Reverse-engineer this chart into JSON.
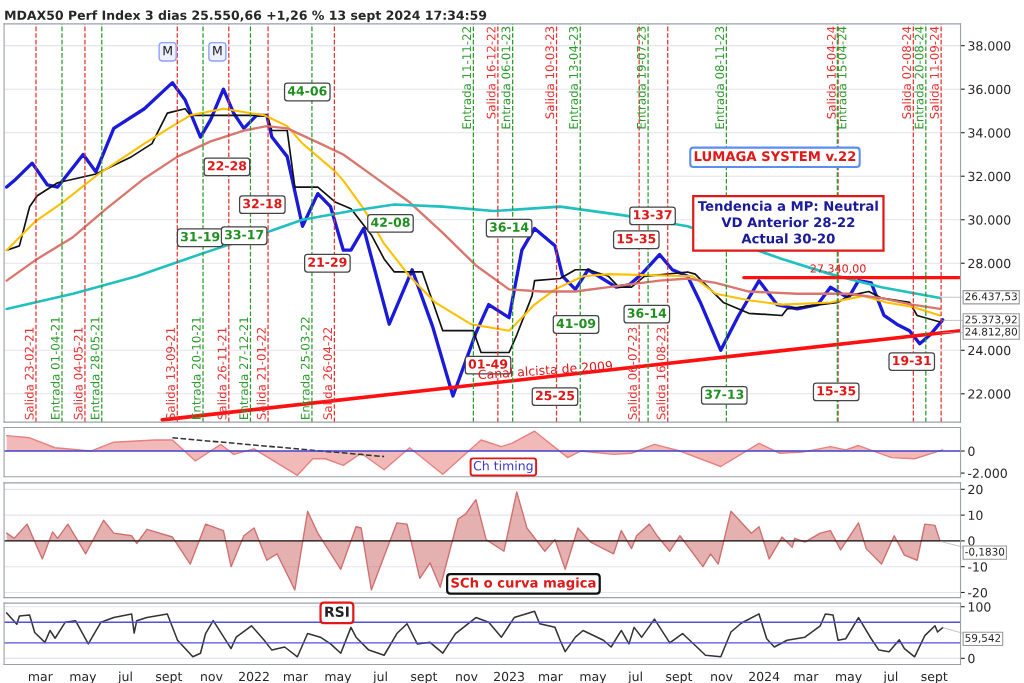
{
  "chart_data": [
    {
      "type": "line",
      "title": "MDAX50 Perf Index 3 dias 25.550,66 +1,26 % 13 sept 2024 17:34:59",
      "grid": "y",
      "tick_labels": "y",
      "xlim": [
        2021.02,
        2024.77
      ],
      "ylim": [
        20700,
        39000
      ],
      "yticks": [
        {
          "value": 22000,
          "label": "22.000"
        },
        {
          "value": 24000,
          "label": "24.000"
        },
        {
          "value": 28000,
          "label": "28.000"
        },
        {
          "value": 30000,
          "label": "30.000"
        },
        {
          "value": 32000,
          "label": "32.000"
        },
        {
          "value": 34000,
          "label": "34.000"
        },
        {
          "value": 36000,
          "label": "36.000"
        },
        {
          "value": 38000,
          "label": "38.000"
        }
      ],
      "series": [
        {
          "color": "#1a1adb",
          "x": [
            2021.03,
            2021.06,
            2021.13,
            2021.19,
            2021.23,
            2021.33,
            2021.38,
            2021.45,
            2021.57,
            2021.68,
            2021.73,
            2021.79,
            2021.83,
            2021.88,
            2021.92,
            2021.96,
            2022.01,
            2022.05,
            2022.07,
            2022.13,
            2022.19,
            2022.25,
            2022.3,
            2022.35,
            2022.38,
            2022.43,
            2022.53,
            2022.62,
            2022.7,
            2022.78,
            2022.87,
            2022.92,
            2023.0,
            2023.05,
            2023.1,
            2023.18,
            2023.21,
            2023.26,
            2023.31,
            2023.42,
            2023.47,
            2023.52,
            2023.59,
            2023.64,
            2023.7,
            2023.75,
            2023.83,
            2023.9,
            2023.98,
            2024.05,
            2024.13,
            2024.21,
            2024.26,
            2024.33,
            2024.37,
            2024.42,
            2024.47,
            2024.52,
            2024.57,
            2024.61,
            2024.65,
            2024.7
          ],
          "values": [
            31500,
            31800,
            32600,
            31600,
            31500,
            33000,
            32200,
            34200,
            35100,
            36300,
            35500,
            33800,
            34600,
            36000,
            34900,
            34200,
            34800,
            34800,
            33800,
            32900,
            29700,
            31200,
            30600,
            28600,
            28600,
            29600,
            25200,
            27700,
            25100,
            21900,
            24800,
            26100,
            25500,
            28600,
            29600,
            28800,
            27400,
            26800,
            27700,
            26900,
            27000,
            27500,
            28400,
            27700,
            27400,
            26200,
            24000,
            25600,
            27200,
            26100,
            25900,
            26100,
            26900,
            26400,
            27200,
            27100,
            25600,
            25200,
            24900,
            24300,
            24700,
            25400
          ]
        },
        {
          "color": "#111111",
          "x": [
            2021.03,
            2021.08,
            2021.12,
            2021.15,
            2021.23,
            2021.38,
            2021.52,
            2021.6,
            2021.66,
            2021.73,
            2021.75,
            2022.05,
            2022.07,
            2022.13,
            2022.16,
            2022.25,
            2022.32,
            2022.38,
            2022.46,
            2022.51,
            2022.55,
            2022.66,
            2022.74,
            2022.86,
            2022.89,
            2023.0,
            2023.03,
            2023.09,
            2023.1,
            2023.2,
            2023.26,
            2023.31,
            2023.39,
            2023.43,
            2023.48,
            2023.53,
            2023.7,
            2023.73,
            2023.78,
            2023.84,
            2023.94,
            2024.07,
            2024.09,
            2024.29,
            2024.33,
            2024.41,
            2024.46,
            2024.57,
            2024.6,
            2024.69
          ],
          "values": [
            28600,
            28800,
            30600,
            31100,
            31700,
            32100,
            32900,
            33500,
            34900,
            35100,
            34800,
            34800,
            34100,
            34100,
            31500,
            31500,
            30800,
            30500,
            29300,
            28200,
            27600,
            27600,
            24900,
            24900,
            23900,
            23900,
            24700,
            26500,
            27200,
            27300,
            27700,
            27700,
            27400,
            26900,
            26900,
            27400,
            27600,
            27500,
            26900,
            26200,
            25700,
            25600,
            25900,
            26200,
            26500,
            26700,
            26400,
            26200,
            25600,
            25300
          ]
        },
        {
          "color": "#ffc000",
          "x": [
            2021.03,
            2021.14,
            2021.25,
            2021.39,
            2021.57,
            2021.68,
            2021.75,
            2021.88,
            2022.04,
            2022.13,
            2022.19,
            2022.32,
            2022.35,
            2022.43,
            2022.51,
            2022.61,
            2022.71,
            2022.85,
            2023.0,
            2023.05,
            2023.1,
            2023.18,
            2023.29,
            2023.39,
            2023.72,
            2023.81,
            2023.94,
            2024.07,
            2024.26,
            2024.39,
            2024.48,
            2024.58,
            2024.69
          ],
          "values": [
            28600,
            29900,
            30800,
            32100,
            33500,
            34300,
            34800,
            35100,
            34800,
            34300,
            33500,
            32200,
            31800,
            30500,
            28900,
            27400,
            26200,
            25200,
            24900,
            25500,
            26100,
            26800,
            27400,
            27500,
            27400,
            26600,
            26300,
            26100,
            26200,
            26500,
            26200,
            26000,
            25600
          ]
        },
        {
          "color": "#d9776f",
          "x": [
            2021.03,
            2021.15,
            2021.29,
            2021.42,
            2021.57,
            2021.7,
            2021.83,
            2021.96,
            2022.05,
            2022.13,
            2022.26,
            2022.35,
            2022.48,
            2022.61,
            2022.74,
            2022.87,
            2023.0,
            2023.13,
            2023.26,
            2023.39,
            2023.59,
            2023.7,
            2023.81,
            2023.94,
            2024.13,
            2024.33,
            2024.46,
            2024.58,
            2024.69
          ],
          "values": [
            27200,
            28200,
            29200,
            30500,
            31900,
            32900,
            33600,
            34100,
            34300,
            34200,
            33500,
            33000,
            31900,
            30800,
            29400,
            27900,
            26800,
            26700,
            26700,
            26900,
            27200,
            27300,
            27100,
            26700,
            26600,
            26600,
            26400,
            26100,
            25900
          ]
        },
        {
          "color": "#20c0c0",
          "x": [
            2021.03,
            2021.29,
            2021.54,
            2021.81,
            2022.07,
            2022.19,
            2022.38,
            2022.55,
            2022.74,
            2022.94,
            2023.2,
            2023.45,
            2023.7,
            2024.07,
            2024.26,
            2024.46,
            2024.69
          ],
          "values": [
            25900,
            26600,
            27400,
            28500,
            29500,
            30000,
            30400,
            30700,
            30600,
            30400,
            30600,
            30200,
            29700,
            28200,
            27500,
            26900,
            26400
          ]
        },
        {
          "color": "#ff1010",
          "x": [
            2021.64,
            2024.77
          ],
          "values": [
            20800,
            24900
          ]
        },
        {
          "color": "#ff1010",
          "x": [
            2023.92,
            2024.77
          ],
          "values": [
            27340,
            27340
          ]
        }
      ],
      "ref_lines": [
        {
          "axis": "x",
          "value": 2021.145,
          "label": "Salida 23-02-21",
          "color": "#e83030",
          "line_style": "dashed"
        },
        {
          "axis": "x",
          "value": 2021.247,
          "label": "Entrada 01-04-21",
          "color": "#2a9a2a",
          "line_style": "dashed"
        },
        {
          "axis": "x",
          "value": 2021.337,
          "label": "Salida 04-05-21",
          "color": "#e83030",
          "line_style": "dashed"
        },
        {
          "axis": "x",
          "value": 2021.403,
          "label": "Entrada 28-05-21",
          "color": "#2a9a2a",
          "line_style": "dashed"
        },
        {
          "axis": "x",
          "value": 2021.699,
          "label": "Salida 13-09-21",
          "color": "#e83030",
          "line_style": "dashed"
        },
        {
          "axis": "x",
          "value": 2021.8,
          "label": "Entrada 20-10-21",
          "color": "#2a9a2a",
          "line_style": "dashed"
        },
        {
          "axis": "x",
          "value": 2021.901,
          "label": "Salida 26-11-21",
          "color": "#e83030",
          "line_style": "dashed"
        },
        {
          "axis": "x",
          "value": 2021.986,
          "label": "Entrada 27-12-21",
          "color": "#2a9a2a",
          "line_style": "dashed"
        },
        {
          "axis": "x",
          "value": 2022.055,
          "label": "Salida 21-01-22",
          "color": "#e83030",
          "line_style": "dashed"
        },
        {
          "axis": "x",
          "value": 2022.227,
          "label": "Entrada 25-03-22",
          "color": "#2a9a2a",
          "line_style": "dashed"
        },
        {
          "axis": "x",
          "value": 2022.315,
          "label": "Salida 26-04-22",
          "color": "#e83030",
          "line_style": "dashed"
        },
        {
          "axis": "x",
          "value": 2022.86,
          "label": "Entrada 11-11-22",
          "color": "#2a9a2a",
          "line_style": "dashed"
        },
        {
          "axis": "x",
          "value": 2022.956,
          "label": "Salida 16-12-22",
          "color": "#e83030",
          "line_style": "dashed"
        },
        {
          "axis": "x",
          "value": 2023.014,
          "label": "Entrada 06-01-23",
          "color": "#2a9a2a",
          "line_style": "dashed"
        },
        {
          "axis": "x",
          "value": 2023.186,
          "label": "Salida 10-03-23",
          "color": "#e83030",
          "line_style": "dashed"
        },
        {
          "axis": "x",
          "value": 2023.279,
          "label": "Entrada 13-04-23",
          "color": "#2a9a2a",
          "line_style": "dashed"
        },
        {
          "axis": "x",
          "value": 2023.51,
          "label": "Salida 06-07-23",
          "color": "#e83030",
          "line_style": "dashed"
        },
        {
          "axis": "x",
          "value": 2023.545,
          "label": "Entrada 19-07-23",
          "color": "#2a9a2a",
          "line_style": "dashed"
        },
        {
          "axis": "x",
          "value": 2023.622,
          "label": "Salida 16-08-23",
          "color": "#e83030",
          "line_style": "dashed"
        },
        {
          "axis": "x",
          "value": 2023.852,
          "label": "Entrada 08-11-23",
          "color": "#2a9a2a",
          "line_style": "dashed"
        },
        {
          "axis": "x",
          "value": 2024.29,
          "label": "Salida 16-04-24",
          "color": "#e83030",
          "line_style": "dashed"
        },
        {
          "axis": "x",
          "value": 2024.287,
          "label": "Entrada 15-04-24",
          "color": "#2a9a2a",
          "line_style": "dashed"
        },
        {
          "axis": "x",
          "value": 2024.585,
          "label": "Salida 02-08-24",
          "color": "#e83030",
          "line_style": "dashed"
        },
        {
          "axis": "x",
          "value": 2024.634,
          "label": "Entrada 20-08-24",
          "color": "#2a9a2a",
          "line_style": "dashed"
        },
        {
          "axis": "x",
          "value": 2024.694,
          "label": "Salida 11-09-24",
          "color": "#e83030",
          "line_style": "dashed"
        }
      ],
      "annotations": [
        "M",
        "M",
        "31-19",
        "33-17",
        "22-28",
        "32-18",
        "44-06",
        "21-29",
        "42-08",
        "36-14",
        "01-49",
        "25-25",
        "41-09",
        "36-14",
        "15-35",
        "13-37",
        "37-13",
        "15-35",
        "19-31",
        "Canal alcista de 2009",
        {
          "text": "27.340,00",
          "x": 2024.29,
          "y": 27340
        },
        {
          "text": "26.437,53",
          "x": 2024.69,
          "y": 26437.53
        },
        {
          "text": "25.373,92",
          "x": 2024.7,
          "y": 25373.92
        },
        {
          "text": "24.812,80",
          "x": 2024.7,
          "y": 24812.8
        },
        "LUMAGA SYSTEM v.22",
        "Tendencia a MP: Neutral\nVD Anterior 28-22\nActual 30-20"
      ]
    },
    {
      "type": "area",
      "tick_labels": "y",
      "xlim": [
        2021.02,
        2024.77
      ],
      "ylim": [
        -2330,
        2130
      ],
      "yticks": [
        0,
        {
          "value": -2000,
          "label": "-2.000"
        }
      ],
      "series": [
        {
          "color": "#e88080",
          "x": [
            2021.03,
            2021.12,
            2021.22,
            2021.36,
            2021.45,
            2021.61,
            2021.68,
            2021.77,
            2021.87,
            2021.92,
            2022.0,
            2022.17,
            2022.23,
            2022.28,
            2022.35,
            2022.42,
            2022.51,
            2022.61,
            2022.74,
            2022.89,
            2022.97,
            2023.01,
            2023.1,
            2023.23,
            2023.28,
            2023.41,
            2023.48,
            2023.57,
            2023.67,
            2023.83,
            2023.98,
            2024.06,
            2024.15,
            2024.26,
            2024.32,
            2024.37,
            2024.5,
            2024.59,
            2024.7
          ],
          "values": [
            1400,
            1200,
            300,
            0,
            800,
            1000,
            1000,
            -900,
            600,
            -300,
            200,
            -2200,
            -700,
            -700,
            -1300,
            -200,
            -1700,
            300,
            -2100,
            1000,
            400,
            700,
            1800,
            -600,
            0,
            -300,
            -200,
            600,
            0,
            -1400,
            700,
            -200,
            -100,
            400,
            100,
            500,
            -600,
            -700,
            100
          ]
        },
        {
          "type": "line",
          "color": "#333333",
          "line_style": "dashed",
          "x": [
            2021.68,
            2022.51
          ],
          "values": [
            1200,
            -500
          ]
        }
      ],
      "ref_lines": [
        {
          "axis": "y",
          "value": 0,
          "color": "#4040d0",
          "line_style": "solid"
        }
      ],
      "annotations": [
        "Ch timing"
      ]
    },
    {
      "type": "area",
      "grid": "y",
      "tick_labels": "y",
      "xlim": [
        2021.02,
        2024.77
      ],
      "ylim": [
        -22,
        22.5
      ],
      "yticks": [
        -20,
        -10,
        0,
        10,
        20
      ],
      "series": [
        {
          "color": "#d07070",
          "x": [
            2021.03,
            2021.06,
            2021.11,
            2021.17,
            2021.21,
            2021.23,
            2021.27,
            2021.34,
            2021.41,
            2021.45,
            2021.52,
            2021.54,
            2021.58,
            2021.68,
            2021.75,
            2021.81,
            2021.88,
            2021.91,
            2021.96,
            2022.0,
            2022.05,
            2022.09,
            2022.16,
            2022.21,
            2022.25,
            2022.34,
            2022.4,
            2022.42,
            2022.46,
            2022.56,
            2022.6,
            2022.65,
            2022.69,
            2022.73,
            2022.8,
            2022.83,
            2022.87,
            2022.91,
            2022.98,
            2023.03,
            2023.07,
            2023.14,
            2023.18,
            2023.22,
            2023.27,
            2023.32,
            2023.41,
            2023.44,
            2023.48,
            2023.5,
            2023.55,
            2023.58,
            2023.63,
            2023.67,
            2023.76,
            2023.79,
            2023.82,
            2023.87,
            2023.95,
            2023.98,
            2024.02,
            2024.07,
            2024.11,
            2024.12,
            2024.16,
            2024.22,
            2024.26,
            2024.3,
            2024.32,
            2024.37,
            2024.4,
            2024.46,
            2024.51,
            2024.55,
            2024.6,
            2024.63,
            2024.67,
            2024.69
          ],
          "values": [
            3,
            1,
            6.5,
            -7,
            3.5,
            1,
            6.5,
            -5,
            8,
            3,
            2,
            -1,
            4.5,
            1.5,
            -9,
            6.5,
            4,
            -10,
            2,
            5,
            -7.5,
            -5,
            -19,
            11.5,
            3,
            -11,
            5.5,
            5,
            -19,
            7,
            6.5,
            -14.5,
            -8.5,
            -18,
            8.5,
            10.5,
            16,
            0.5,
            -4,
            19,
            5,
            -4,
            0.5,
            -11,
            5,
            -0.5,
            -5,
            4,
            -3,
            2,
            6.5,
            2,
            -4,
            2,
            -10,
            -5,
            -9,
            11.5,
            3,
            5.5,
            -7,
            1.5,
            -2.5,
            1,
            -0.5,
            3,
            4,
            -3.5,
            -0.5,
            7,
            -3,
            -9,
            2,
            -5.5,
            -7.5,
            6.5,
            6,
            -0.183
          ]
        }
      ],
      "ref_lines": [
        {
          "axis": "y",
          "value": 0,
          "color": "#111111",
          "line_style": "solid"
        }
      ],
      "annotations": [
        "SCh o curva magica",
        {
          "text": "-0,1830",
          "x": 2024.69,
          "y": -0.183
        }
      ]
    },
    {
      "type": "line",
      "grid": "y",
      "xlim": [
        2021.02,
        2024.77
      ],
      "ylim": [
        -12,
        107
      ],
      "xticks": [
        {
          "value": 2021.162,
          "label": "mar"
        },
        {
          "value": 2021.329,
          "label": "may"
        },
        {
          "value": 2021.496,
          "label": "jul"
        },
        {
          "value": 2021.666,
          "label": "sept"
        },
        {
          "value": 2021.833,
          "label": "nov"
        },
        {
          "value": 2022.0,
          "label": "2022"
        },
        {
          "value": 2022.162,
          "label": "mar"
        },
        {
          "value": 2022.329,
          "label": "may"
        },
        {
          "value": 2022.496,
          "label": "jul"
        },
        {
          "value": 2022.666,
          "label": "sept"
        },
        {
          "value": 2022.833,
          "label": "nov"
        },
        {
          "value": 2023.0,
          "label": "2023"
        },
        {
          "value": 2023.162,
          "label": "mar"
        },
        {
          "value": 2023.329,
          "label": "may"
        },
        {
          "value": 2023.496,
          "label": "jul"
        },
        {
          "value": 2023.666,
          "label": "sept"
        },
        {
          "value": 2023.833,
          "label": "nov"
        },
        {
          "value": 2024.0,
          "label": "2024"
        },
        {
          "value": 2024.164,
          "label": "mar"
        },
        {
          "value": 2024.331,
          "label": "may"
        },
        {
          "value": 2024.497,
          "label": "jul"
        },
        {
          "value": 2024.667,
          "label": "sept"
        }
      ],
      "yticks": [
        0,
        100
      ],
      "series": [
        {
          "color": "#333333",
          "x": [
            2021.03,
            2021.07,
            2021.08,
            2021.12,
            2021.14,
            2021.18,
            2021.2,
            2021.22,
            2021.26,
            2021.3,
            2021.35,
            2021.4,
            2021.45,
            2021.52,
            2021.53,
            2021.54,
            2021.58,
            2021.66,
            2021.7,
            2021.76,
            2021.79,
            2021.81,
            2021.84,
            2021.91,
            2021.93,
            2021.99,
            2022.04,
            2022.07,
            2022.12,
            2022.17,
            2022.21,
            2022.26,
            2022.3,
            2022.34,
            2022.38,
            2022.4,
            2022.45,
            2022.51,
            2022.56,
            2022.6,
            2022.64,
            2022.69,
            2022.74,
            2022.79,
            2022.87,
            2022.92,
            2022.97,
            2023.02,
            2023.1,
            2023.12,
            2023.18,
            2023.2,
            2023.22,
            2023.26,
            2023.29,
            2023.37,
            2023.4,
            2023.44,
            2023.47,
            2023.49,
            2023.52,
            2023.57,
            2023.63,
            2023.68,
            2023.73,
            2023.77,
            2023.83,
            2023.87,
            2023.91,
            2023.98,
            2024.01,
            2024.04,
            2024.09,
            2024.16,
            2024.22,
            2024.24,
            2024.27,
            2024.29,
            2024.32,
            2024.37,
            2024.42,
            2024.45,
            2024.49,
            2024.53,
            2024.55,
            2024.59,
            2024.63,
            2024.67,
            2024.68,
            2024.7
          ],
          "values": [
            88,
            66,
            82,
            84,
            50,
            31,
            54,
            39,
            70,
            73,
            28,
            70,
            79,
            86,
            49,
            73,
            79,
            86,
            35,
            3,
            10,
            48,
            73,
            19,
            41,
            63,
            35,
            16,
            22,
            3,
            48,
            41,
            28,
            10,
            60,
            41,
            16,
            6,
            48,
            67,
            28,
            31,
            10,
            48,
            79,
            70,
            41,
            79,
            91,
            67,
            60,
            35,
            13,
            41,
            54,
            35,
            22,
            54,
            28,
            60,
            41,
            76,
            30,
            48,
            25,
            6,
            3,
            51,
            68,
            86,
            38,
            22,
            35,
            41,
            63,
            86,
            84,
            35,
            38,
            79,
            38,
            16,
            13,
            36,
            19,
            3,
            44,
            63,
            51,
            59.542
          ]
        }
      ],
      "ref_lines": [
        {
          "axis": "y",
          "value": 70,
          "color": "#5050e0",
          "line_style": "solid"
        },
        {
          "axis": "y",
          "value": 30,
          "color": "#5050e0",
          "line_style": "solid"
        }
      ],
      "annotations": [
        "RSI",
        {
          "text": "59,542",
          "x": 2024.7,
          "y": 59.542
        }
      ]
    }
  ]
}
